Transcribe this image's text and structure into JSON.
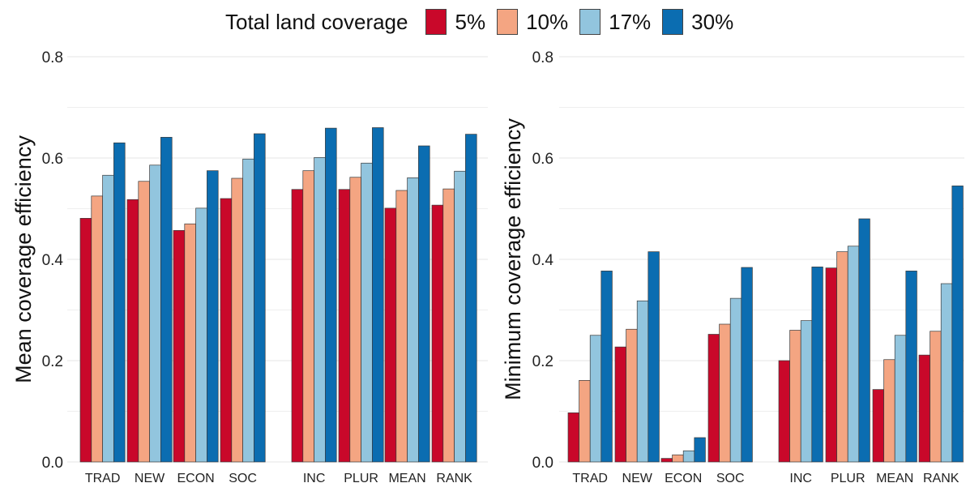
{
  "legend": {
    "title": "Total land coverage",
    "items": [
      {
        "label": "5%",
        "color": "#c9082a"
      },
      {
        "label": "10%",
        "color": "#f4a582"
      },
      {
        "label": "17%",
        "color": "#92c5de"
      },
      {
        "label": "30%",
        "color": "#0b6db1"
      }
    ]
  },
  "chart_data": [
    {
      "type": "bar",
      "ylabel": "Mean coverage efficiency",
      "xlabel": "",
      "ylim": [
        0,
        0.8
      ],
      "yticks": [
        "0.0",
        "0.2",
        "0.4",
        "0.6",
        "0.8"
      ],
      "grid": true,
      "categories": [
        "TRAD",
        "NEW",
        "ECON",
        "SOC",
        "INC",
        "PLUR",
        "MEAN",
        "RANK"
      ],
      "series": [
        {
          "name": "5%",
          "values": [
            0.481,
            0.518,
            0.457,
            0.52,
            0.538,
            0.538,
            0.501,
            0.507
          ]
        },
        {
          "name": "10%",
          "values": [
            0.525,
            0.554,
            0.47,
            0.56,
            0.575,
            0.562,
            0.536,
            0.539
          ]
        },
        {
          "name": "17%",
          "values": [
            0.566,
            0.586,
            0.501,
            0.598,
            0.601,
            0.59,
            0.561,
            0.574
          ]
        },
        {
          "name": "30%",
          "values": [
            0.63,
            0.641,
            0.575,
            0.648,
            0.659,
            0.66,
            0.624,
            0.647
          ]
        }
      ]
    },
    {
      "type": "bar",
      "ylabel": "Minimum coverage efficiency",
      "xlabel": "",
      "ylim": [
        0,
        0.8
      ],
      "yticks": [
        "0.0",
        "0.2",
        "0.4",
        "0.6",
        "0.8"
      ],
      "grid": true,
      "categories": [
        "TRAD",
        "NEW",
        "ECON",
        "SOC",
        "INC",
        "PLUR",
        "MEAN",
        "RANK"
      ],
      "series": [
        {
          "name": "5%",
          "values": [
            0.097,
            0.227,
            0.007,
            0.252,
            0.2,
            0.383,
            0.143,
            0.211
          ]
        },
        {
          "name": "10%",
          "values": [
            0.161,
            0.262,
            0.014,
            0.272,
            0.26,
            0.415,
            0.202,
            0.258
          ]
        },
        {
          "name": "17%",
          "values": [
            0.25,
            0.318,
            0.022,
            0.323,
            0.279,
            0.426,
            0.25,
            0.352
          ]
        },
        {
          "name": "30%",
          "values": [
            0.377,
            0.415,
            0.048,
            0.384,
            0.385,
            0.48,
            0.377,
            0.545
          ]
        }
      ]
    }
  ]
}
